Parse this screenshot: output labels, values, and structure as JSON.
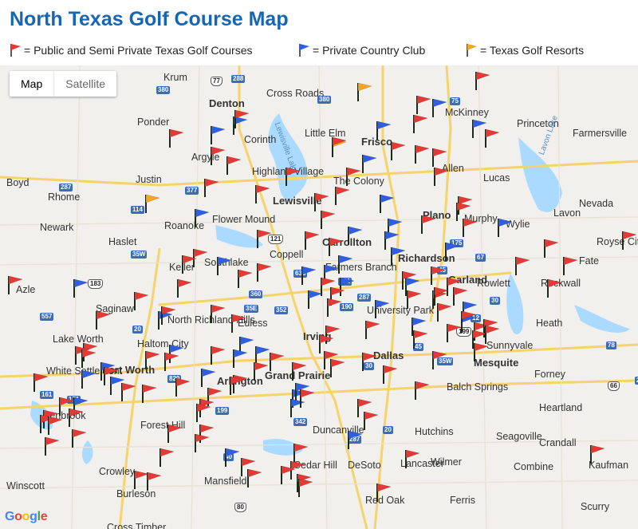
{
  "title": "North Texas Golf Course Map",
  "legend": [
    {
      "label": "= Public and Semi Private Texas Golf Courses",
      "color": "#e53935"
    },
    {
      "label": "= Private Country Club",
      "color": "#2f5fe0"
    },
    {
      "label": "= Texas Golf Resorts",
      "color": "#f5a623"
    }
  ],
  "map_type": {
    "map": "Map",
    "satellite": "Satellite"
  },
  "attribution": "Google",
  "places": {
    "big": [
      "Fort Worth",
      "Arlington",
      "Dallas",
      "Irving",
      "Grand Prairie",
      "Denton",
      "Plano",
      "Garland",
      "Mesquite",
      "Lewisville",
      "Frisco",
      "Carrollton",
      "Richardson"
    ],
    "cities": [
      "Krum",
      "Cross Roads",
      "McKinney",
      "Ponder",
      "Princeton",
      "Farmersville",
      "Little Elm",
      "Corinth",
      "Argyle",
      "Highland Village",
      "The Colony",
      "Allen",
      "Lucas",
      "Justin",
      "Boyd",
      "Rhome",
      "Flower Mound",
      "Roanoke",
      "Murphy",
      "Wylie",
      "Nevada",
      "Lavon",
      "Newark",
      "Haslet",
      "Coppell",
      "Keller",
      "Southlake",
      "Farmers Branch",
      "Rockwall",
      "Fate",
      "Royse City",
      "Azle",
      "Saginaw",
      "North Richland Hills",
      "Euless",
      "University Park",
      "Rowlett",
      "Heath",
      "Lake Worth",
      "Haltom City",
      "Sunnyvale",
      "White Settlement",
      "Balch Springs",
      "Forney",
      "Benbrook",
      "Forest Hill",
      "Heartland",
      "Duncanville",
      "Hutchins",
      "Seagoville",
      "Crandall",
      "Crowley",
      "Mansfield",
      "Cedar Hill",
      "DeSoto",
      "Lancaster",
      "Wilmer",
      "Combine",
      "Kaufman",
      "Winscott",
      "Burleson",
      "Red Oak",
      "Ferris",
      "Scurry",
      "Cross Timber"
    ],
    "water": [
      "Lewisville Lake",
      "Lavon Lake"
    ],
    "shields": [
      "77",
      "288",
      "380",
      "380",
      "75",
      "377",
      "35W",
      "35E",
      "114",
      "121",
      "287",
      "635",
      "183",
      "360",
      "161",
      "30",
      "820",
      "20",
      "45",
      "175",
      "67",
      "12",
      "190",
      "78",
      "66",
      "205",
      "557",
      "80",
      "199",
      "287",
      "20",
      "30",
      "35W",
      "45",
      "342",
      "352",
      "40",
      "161",
      "287",
      "199",
      "171"
    ]
  },
  "flag_counts": {
    "public": 118,
    "private": 41,
    "resort": 3
  }
}
